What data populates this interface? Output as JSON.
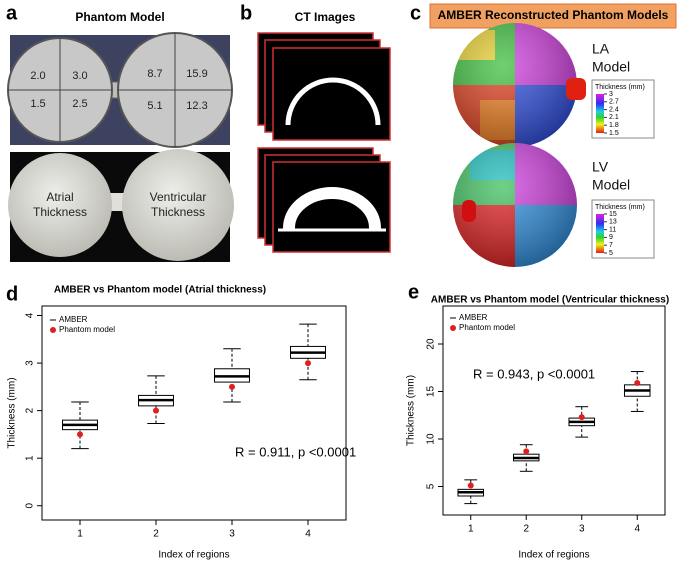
{
  "panels": {
    "a": {
      "label": "a",
      "title": "Phantom Model",
      "regions": [
        "2.0",
        "3.0",
        "1.5",
        "2.5",
        "8.7",
        "15.9",
        "5.1",
        "12.3"
      ],
      "atrial": [
        "Atrial",
        "Thickness"
      ],
      "ventricular": [
        "Ventricular",
        "Thickness"
      ]
    },
    "b": {
      "label": "b",
      "title": "CT Images"
    },
    "c": {
      "label": "c",
      "title": "AMBER Reconstructed Phantom Models",
      "la": {
        "name": [
          "LA",
          "Model"
        ],
        "colorbar_title": "Thickness (mm)",
        "ticks": [
          3,
          2.7,
          2.4,
          2.1,
          1.8,
          1.5
        ]
      },
      "lv": {
        "name": [
          "LV",
          "Model"
        ],
        "colorbar_title": "Thickness (mm)",
        "ticks": [
          15,
          13,
          11,
          9,
          7,
          5
        ]
      }
    }
  },
  "chart_data": [
    {
      "type": "box",
      "label": "d",
      "title": "AMBER vs Phantom model (Atrial thickness)",
      "xlabel": "Index of regions",
      "ylabel": "Thickness (mm)",
      "categories": [
        "1",
        "2",
        "3",
        "4"
      ],
      "series": [
        {
          "name": "AMBER",
          "color": "#000000",
          "whisker_low": [
            1.2,
            1.73,
            2.18,
            2.65
          ],
          "q1": [
            1.6,
            2.1,
            2.6,
            3.1
          ],
          "median": [
            1.7,
            2.22,
            2.72,
            3.22
          ],
          "q3": [
            1.8,
            2.32,
            2.88,
            3.35
          ],
          "whisker_high": [
            2.18,
            2.73,
            3.3,
            3.82
          ]
        },
        {
          "name": "Phantom model",
          "color": "#e02020",
          "values": [
            1.5,
            2.0,
            2.5,
            3.0
          ]
        }
      ],
      "annotation": "R = 0.911, p <0.0001",
      "ylim": [
        -0.3,
        4.2
      ],
      "yticks": [
        0,
        1,
        2,
        3,
        4
      ]
    },
    {
      "type": "box",
      "label": "e",
      "title": "AMBER vs Phantom model (Ventricular thickness)",
      "xlabel": "Index of regions",
      "ylabel": "Thickness (mm)",
      "categories": [
        "1",
        "2",
        "3",
        "4"
      ],
      "series": [
        {
          "name": "AMBER",
          "color": "#000000",
          "whisker_low": [
            3.2,
            6.6,
            10.2,
            12.9
          ],
          "q1": [
            4.0,
            7.7,
            11.4,
            14.5
          ],
          "median": [
            4.4,
            8.0,
            11.8,
            15.1
          ],
          "q3": [
            4.7,
            8.4,
            12.2,
            15.7
          ],
          "whisker_high": [
            5.7,
            9.4,
            13.4,
            17.1
          ]
        },
        {
          "name": "Phantom model",
          "color": "#e02020",
          "values": [
            5.1,
            8.7,
            12.3,
            15.9
          ]
        }
      ],
      "annotation": "R = 0.943, p <0.0001",
      "ylim": [
        2,
        24
      ],
      "yticks": [
        5,
        10,
        15,
        20
      ]
    }
  ]
}
